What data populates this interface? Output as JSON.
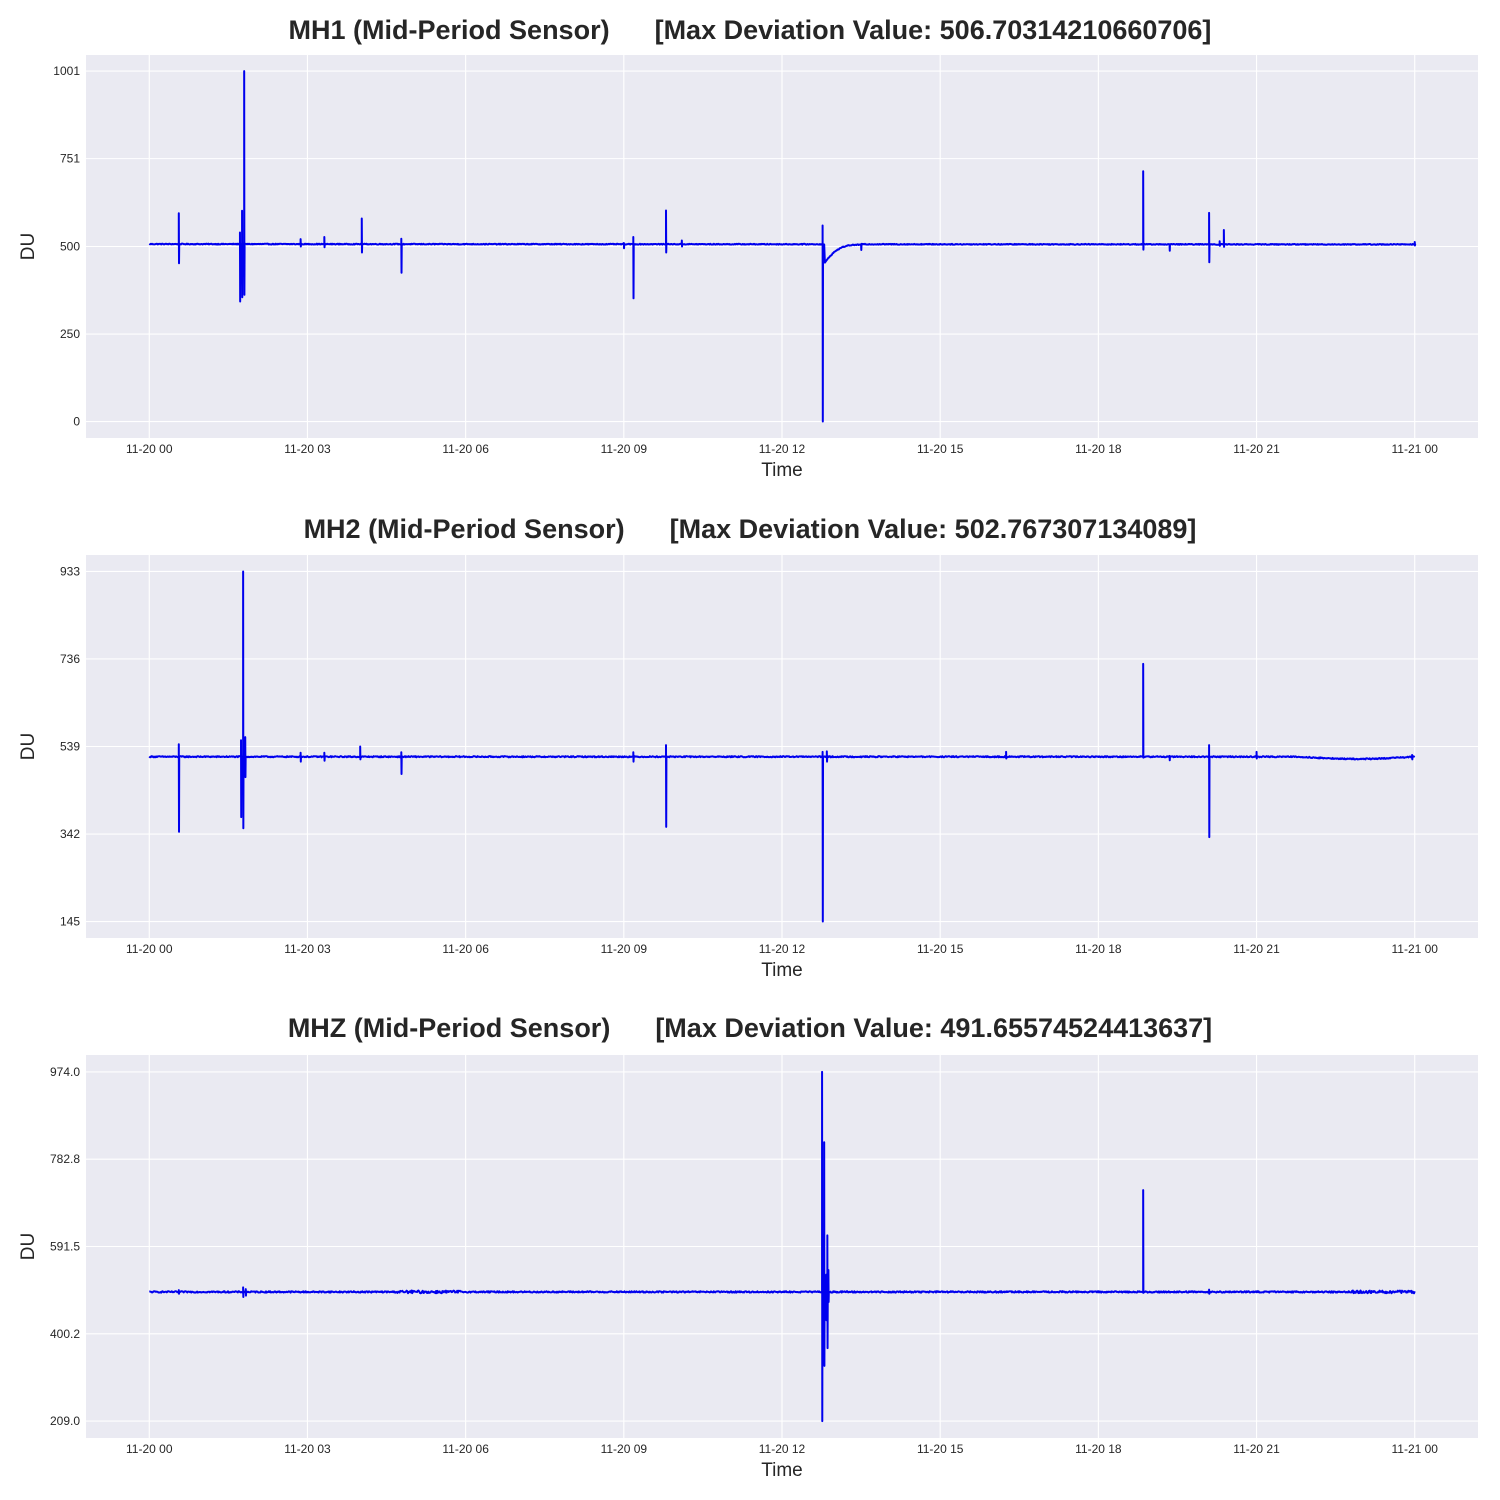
{
  "chart_data": [
    {
      "type": "line",
      "title": "MH1 (Mid-Period Sensor)      [Max Deviation Value: 506.70314210660706]",
      "xlabel": "Time",
      "ylabel": "DU",
      "x_ticks": [
        "11-20 00",
        "11-20 03",
        "11-20 06",
        "11-20 09",
        "11-20 12",
        "11-20 15",
        "11-20 18",
        "11-20 21",
        "11-21 00"
      ],
      "y_ticks": [
        "0",
        "250",
        "500",
        "751",
        "1001"
      ],
      "ylim": [
        -47,
        1047
      ],
      "xlim_hours": [
        -1.2,
        25.2
      ],
      "grid": true,
      "line_color": "#0000ee",
      "series": [
        {
          "baseline": 507,
          "baseline_end": 506,
          "noise": 1.2,
          "events": [
            {
              "t": 0.56,
              "hi": 595,
              "lo": 452
            },
            {
              "t": 1.72,
              "hi": 540,
              "lo": 343
            },
            {
              "t": 1.76,
              "hi": 602,
              "lo": 355
            },
            {
              "t": 1.8,
              "hi": 1001,
              "lo": 362
            },
            {
              "t": 2.87,
              "hi": 521,
              "lo": 500
            },
            {
              "t": 3.32,
              "hi": 527,
              "lo": 498
            },
            {
              "t": 4.03,
              "hi": 580,
              "lo": 483
            },
            {
              "t": 4.78,
              "hi": 522,
              "lo": 425
            },
            {
              "t": 9.0,
              "hi": 510,
              "lo": 495
            },
            {
              "t": 9.18,
              "hi": 527,
              "lo": 352
            },
            {
              "t": 9.8,
              "hi": 603,
              "lo": 483
            },
            {
              "t": 10.1,
              "hi": 517,
              "lo": 500
            },
            {
              "t": 12.77,
              "hi": 560,
              "lo": 0
            },
            {
              "t": 13.5,
              "hi": 506,
              "lo": 490
            },
            {
              "t": 18.85,
              "hi": 715,
              "lo": 491
            },
            {
              "t": 19.35,
              "hi": 506,
              "lo": 488
            },
            {
              "t": 20.1,
              "hi": 596,
              "lo": 455
            },
            {
              "t": 20.3,
              "hi": 515,
              "lo": 502
            },
            {
              "t": 20.38,
              "hi": 547,
              "lo": 499
            },
            {
              "t": 24.0,
              "hi": 513,
              "lo": 503
            }
          ],
          "recovery": {
            "t": 12.8,
            "from": 450,
            "to": 505,
            "dur": 0.7
          }
        }
      ]
    },
    {
      "type": "line",
      "title": "MH2 (Mid-Period Sensor)      [Max Deviation Value: 502.767307134089]",
      "xlabel": "Time",
      "ylabel": "DU",
      "x_ticks": [
        "11-20 00",
        "11-20 03",
        "11-20 06",
        "11-20 09",
        "11-20 12",
        "11-20 15",
        "11-20 18",
        "11-20 21",
        "11-21 00"
      ],
      "y_ticks": [
        "145",
        "342",
        "539",
        "736",
        "933"
      ],
      "ylim": [
        108,
        970
      ],
      "xlim_hours": [
        -1.2,
        25.2
      ],
      "grid": true,
      "line_color": "#0000ee",
      "series": [
        {
          "baseline": 516,
          "baseline_end": 516,
          "noise": 1.3,
          "events": [
            {
              "t": 0.56,
              "hi": 544,
              "lo": 347
            },
            {
              "t": 1.74,
              "hi": 553,
              "lo": 380
            },
            {
              "t": 1.78,
              "hi": 933,
              "lo": 355
            },
            {
              "t": 1.82,
              "hi": 560,
              "lo": 470
            },
            {
              "t": 2.87,
              "hi": 525,
              "lo": 505
            },
            {
              "t": 3.32,
              "hi": 525,
              "lo": 507
            },
            {
              "t": 4.0,
              "hi": 539,
              "lo": 510
            },
            {
              "t": 4.78,
              "hi": 526,
              "lo": 477
            },
            {
              "t": 9.18,
              "hi": 526,
              "lo": 505
            },
            {
              "t": 9.8,
              "hi": 542,
              "lo": 358
            },
            {
              "t": 12.77,
              "hi": 527,
              "lo": 145
            },
            {
              "t": 12.85,
              "hi": 528,
              "lo": 505
            },
            {
              "t": 16.25,
              "hi": 527,
              "lo": 512
            },
            {
              "t": 18.85,
              "hi": 725,
              "lo": 514
            },
            {
              "t": 19.35,
              "hi": 518,
              "lo": 508
            },
            {
              "t": 20.1,
              "hi": 542,
              "lo": 335
            },
            {
              "t": 21.0,
              "hi": 527,
              "lo": 512
            },
            {
              "t": 23.95,
              "hi": 520,
              "lo": 510
            }
          ],
          "dip": {
            "t0": 21.8,
            "t1": 24.0,
            "depth": 5
          }
        }
      ]
    },
    {
      "type": "line",
      "title": "MHZ (Mid-Period Sensor)      [Max Deviation Value: 491.65574524413637]",
      "xlabel": "Time",
      "ylabel": "DU",
      "x_ticks": [
        "11-20 00",
        "11-20 03",
        "11-20 06",
        "11-20 09",
        "11-20 12",
        "11-20 15",
        "11-20 18",
        "11-20 21",
        "11-21 00"
      ],
      "y_ticks": [
        "209.0",
        "400.2",
        "591.5",
        "782.8",
        "974.0"
      ],
      "ylim": [
        172,
        1011
      ],
      "xlim_hours": [
        -1.2,
        25.2
      ],
      "grid": true,
      "line_color": "#0000ee",
      "series": [
        {
          "baseline": 492,
          "baseline_end": 492,
          "noise": 1.5,
          "events": [
            {
              "t": 0.56,
              "hi": 496,
              "lo": 488
            },
            {
              "t": 1.78,
              "hi": 502,
              "lo": 481
            },
            {
              "t": 1.83,
              "hi": 498,
              "lo": 484
            },
            {
              "t": 12.76,
              "hi": 974,
              "lo": 209
            },
            {
              "t": 12.8,
              "hi": 820,
              "lo": 330
            },
            {
              "t": 12.84,
              "hi": 530,
              "lo": 430
            },
            {
              "t": 12.86,
              "hi": 616,
              "lo": 369
            },
            {
              "t": 12.88,
              "hi": 540,
              "lo": 470
            },
            {
              "t": 18.85,
              "hi": 715,
              "lo": 490
            },
            {
              "t": 20.1,
              "hi": 497,
              "lo": 488
            }
          ],
          "noisy_zones": [
            {
              "t0": 4.7,
              "t1": 5.9,
              "amp": 3
            },
            {
              "t0": 22.8,
              "t1": 24.0,
              "amp": 3
            }
          ]
        }
      ]
    }
  ]
}
